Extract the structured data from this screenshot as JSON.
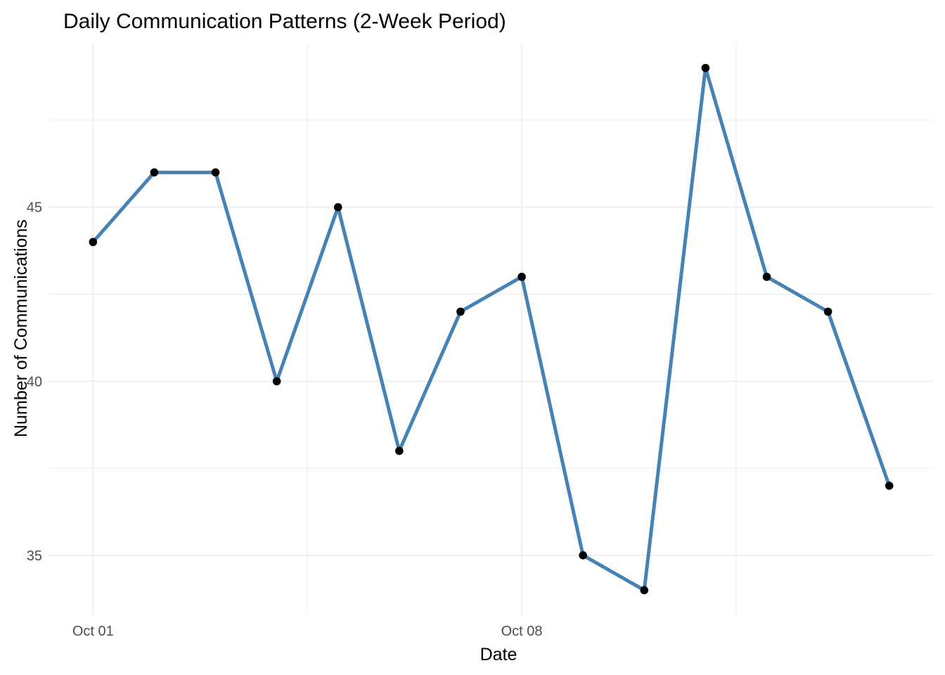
{
  "chart_data": {
    "type": "line",
    "title": "Daily Communication Patterns (2-Week Period)",
    "xlabel": "Date",
    "ylabel": "Number of Communications",
    "x_axis_type": "date",
    "x": [
      "2023-10-01",
      "2023-10-02",
      "2023-10-03",
      "2023-10-04",
      "2023-10-05",
      "2023-10-06",
      "2023-10-07",
      "2023-10-08",
      "2023-10-09",
      "2023-10-10",
      "2023-10-11",
      "2023-10-12",
      "2023-10-13",
      "2023-10-14"
    ],
    "values": [
      44,
      46,
      46,
      40,
      45,
      38,
      42,
      43,
      35,
      34,
      49,
      43,
      42,
      37
    ],
    "x_ticks": [
      {
        "date": "2023-10-01",
        "label": "Oct 01"
      },
      {
        "date": "2023-10-08",
        "label": "Oct 08"
      }
    ],
    "y_ticks": [
      35,
      40,
      45
    ],
    "xlim": [
      "2023-10-01",
      "2023-10-14"
    ],
    "ylim": [
      33.3,
      49.7
    ],
    "grid": true,
    "legend": "none",
    "line_color": "#4682b4",
    "point_color": "#000000",
    "theme": "minimal"
  }
}
